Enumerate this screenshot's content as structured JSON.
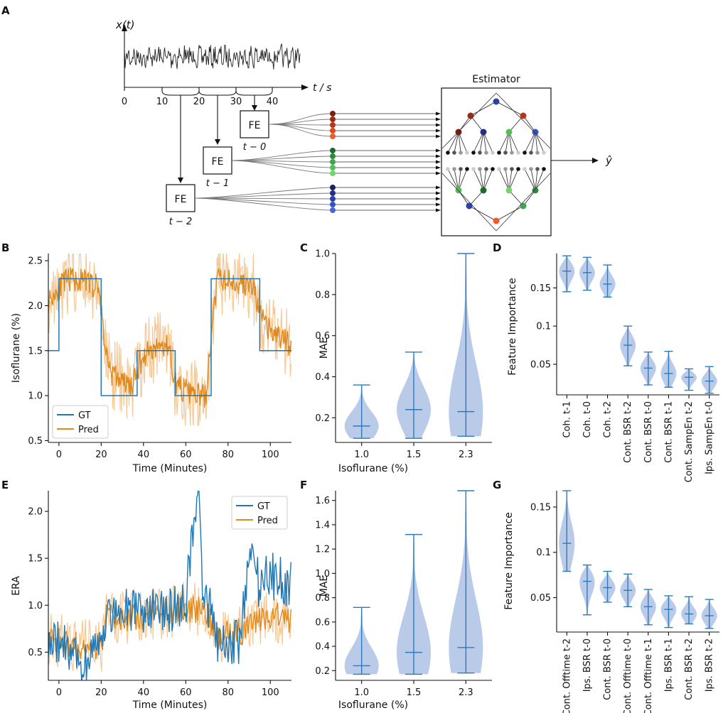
{
  "panels": {
    "A": "A",
    "B": "B",
    "C": "C",
    "D": "D",
    "E": "E",
    "F": "F",
    "G": "G"
  },
  "diagram": {
    "signal_label": "x(t)",
    "time_axis_label": "t / s",
    "time_ticks": [
      "0",
      "10",
      "20",
      "30",
      "40"
    ],
    "fe_label": "FE",
    "fe_lags": [
      "t − 0",
      "t − 1",
      "t − 2"
    ],
    "estimator_title": "Estimator",
    "output_label": "ŷ"
  },
  "colors": {
    "gt": "#1f77b4",
    "pred": "#ff8c1a",
    "pred_band": "#f5c896",
    "violin": "#aec2e6",
    "violin_line": "#2b7bbb",
    "red": [
      "#7a1f10",
      "#9a2a14",
      "#b8351a",
      "#d94a20",
      "#ef5a2a"
    ],
    "green": [
      "#1d6b2c",
      "#2e8a3a",
      "#3fa64a",
      "#55bf57",
      "#74d46d"
    ],
    "blue": [
      "#1a1f66",
      "#22308a",
      "#2b40a8",
      "#3552c4",
      "#4666d6"
    ]
  },
  "chart_data": [
    {
      "id": "B",
      "type": "line",
      "xlabel": "Time (Minutes)",
      "ylabel": "Isoflurane (%)",
      "xlim": [
        -5,
        110
      ],
      "ylim": [
        0.48,
        2.58
      ],
      "xticks": [
        0,
        20,
        40,
        60,
        80,
        100
      ],
      "yticks": [
        0.5,
        1.0,
        1.5,
        2.0,
        2.5
      ],
      "legend": [
        "GT",
        "Pred"
      ],
      "legend_position": "lower-left",
      "gt_steps": [
        [
          -5,
          1.5
        ],
        [
          0,
          1.5
        ],
        [
          0,
          2.3
        ],
        [
          20,
          2.3
        ],
        [
          20,
          1.0
        ],
        [
          37,
          1.0
        ],
        [
          37,
          1.5
        ],
        [
          55,
          1.5
        ],
        [
          55,
          1.0
        ],
        [
          72,
          1.0
        ],
        [
          72,
          2.3
        ],
        [
          95,
          2.3
        ],
        [
          95,
          1.5
        ],
        [
          110,
          1.5
        ]
      ],
      "pred_segments": [
        [
          -5,
          2.05
        ],
        [
          0,
          2.2
        ],
        [
          5,
          2.3
        ],
        [
          15,
          2.25
        ],
        [
          19,
          2.2
        ],
        [
          22,
          1.5
        ],
        [
          25,
          1.25
        ],
        [
          30,
          1.15
        ],
        [
          35,
          1.1
        ],
        [
          38,
          1.35
        ],
        [
          42,
          1.5
        ],
        [
          48,
          1.55
        ],
        [
          52,
          1.55
        ],
        [
          55,
          1.15
        ],
        [
          60,
          1.05
        ],
        [
          65,
          1.0
        ],
        [
          70,
          1.0
        ],
        [
          72,
          1.7
        ],
        [
          75,
          2.3
        ],
        [
          85,
          2.25
        ],
        [
          92,
          2.2
        ],
        [
          95,
          1.9
        ],
        [
          100,
          1.7
        ],
        [
          105,
          1.65
        ],
        [
          110,
          1.55
        ]
      ]
    },
    {
      "id": "C",
      "type": "violin",
      "xlabel": "Isoflurane (%)",
      "ylabel": "MAE",
      "ylim": [
        0.08,
        1.0
      ],
      "yticks": [
        0.2,
        0.4,
        0.6,
        0.8,
        1.0
      ],
      "categories": [
        "1.0",
        "1.5",
        "2.3"
      ],
      "min": [
        0.1,
        0.1,
        0.11
      ],
      "median": [
        0.16,
        0.24,
        0.23
      ],
      "max": [
        0.36,
        0.52,
        1.0
      ]
    },
    {
      "id": "D",
      "type": "violin",
      "ylabel": "Feature Importance",
      "ylim": [
        0.01,
        0.195
      ],
      "yticks": [
        0.05,
        0.1,
        0.15
      ],
      "categories": [
        "Coh. t-1",
        "Coh. t-0",
        "Coh. t-2",
        "Cont. BSR t-2",
        "Cont. BSR t-0",
        "Cont. BSR t-1",
        "Cont. SampEn t-2",
        "Ips. SampEn t-0"
      ],
      "min": [
        0.145,
        0.147,
        0.138,
        0.048,
        0.023,
        0.02,
        0.016,
        0.012
      ],
      "median": [
        0.172,
        0.17,
        0.155,
        0.075,
        0.045,
        0.038,
        0.033,
        0.028
      ],
      "max": [
        0.192,
        0.19,
        0.18,
        0.1,
        0.066,
        0.067,
        0.044,
        0.047
      ]
    },
    {
      "id": "E",
      "type": "line",
      "xlabel": "Time (Minutes)",
      "ylabel": "ERA",
      "xlim": [
        -5,
        110
      ],
      "ylim": [
        0.2,
        2.22
      ],
      "xticks": [
        0,
        20,
        40,
        60,
        80,
        100
      ],
      "yticks": [
        0.5,
        1.0,
        1.5,
        2.0
      ],
      "legend": [
        "GT",
        "Pred"
      ],
      "legend_position": "top-right",
      "gt_trend": [
        [
          -5,
          0.7
        ],
        [
          5,
          0.5
        ],
        [
          10,
          0.35
        ],
        [
          20,
          0.5
        ],
        [
          22,
          0.9
        ],
        [
          35,
          0.95
        ],
        [
          50,
          0.95
        ],
        [
          60,
          1.0
        ],
        [
          66,
          2.2
        ],
        [
          68,
          1.0
        ],
        [
          72,
          1.0
        ],
        [
          75,
          0.55
        ],
        [
          85,
          0.6
        ],
        [
          90,
          1.6
        ],
        [
          95,
          1.2
        ],
        [
          100,
          1.4
        ],
        [
          105,
          1.25
        ],
        [
          110,
          1.2
        ]
      ],
      "pred_trend": [
        [
          -5,
          0.65
        ],
        [
          10,
          0.55
        ],
        [
          20,
          0.55
        ],
        [
          22,
          0.85
        ],
        [
          40,
          0.9
        ],
        [
          60,
          0.95
        ],
        [
          70,
          0.95
        ],
        [
          75,
          0.65
        ],
        [
          90,
          0.75
        ],
        [
          100,
          0.9
        ],
        [
          110,
          0.85
        ]
      ]
    },
    {
      "id": "F",
      "type": "violin",
      "xlabel": "Isoflurane (%)",
      "ylabel": "MAE",
      "ylim": [
        0.12,
        1.68
      ],
      "yticks": [
        0.2,
        0.4,
        0.6,
        0.8,
        1.0,
        1.2,
        1.4,
        1.6
      ],
      "categories": [
        "1.0",
        "1.5",
        "2.3"
      ],
      "min": [
        0.17,
        0.17,
        0.18
      ],
      "median": [
        0.24,
        0.35,
        0.39
      ],
      "max": [
        0.72,
        1.32,
        1.68
      ]
    },
    {
      "id": "G",
      "type": "violin",
      "ylabel": "Feature Importance",
      "ylim": [
        0.012,
        0.168
      ],
      "yticks": [
        0.05,
        0.1,
        0.15
      ],
      "categories": [
        "Cont. Offtime t-2",
        "Ips. BSR t-0",
        "Cont. BSR t-0",
        "Cont. Offtime t-0",
        "Cont. Offtime t-1",
        "Ips. BSR t-1",
        "Cont. BSR t-2",
        "Ips. BSR t-2"
      ],
      "min": [
        0.079,
        0.031,
        0.045,
        0.04,
        0.02,
        0.017,
        0.021,
        0.016
      ],
      "median": [
        0.11,
        0.068,
        0.061,
        0.058,
        0.04,
        0.037,
        0.032,
        0.03
      ],
      "max": [
        0.168,
        0.086,
        0.079,
        0.076,
        0.059,
        0.052,
        0.051,
        0.048
      ]
    }
  ]
}
